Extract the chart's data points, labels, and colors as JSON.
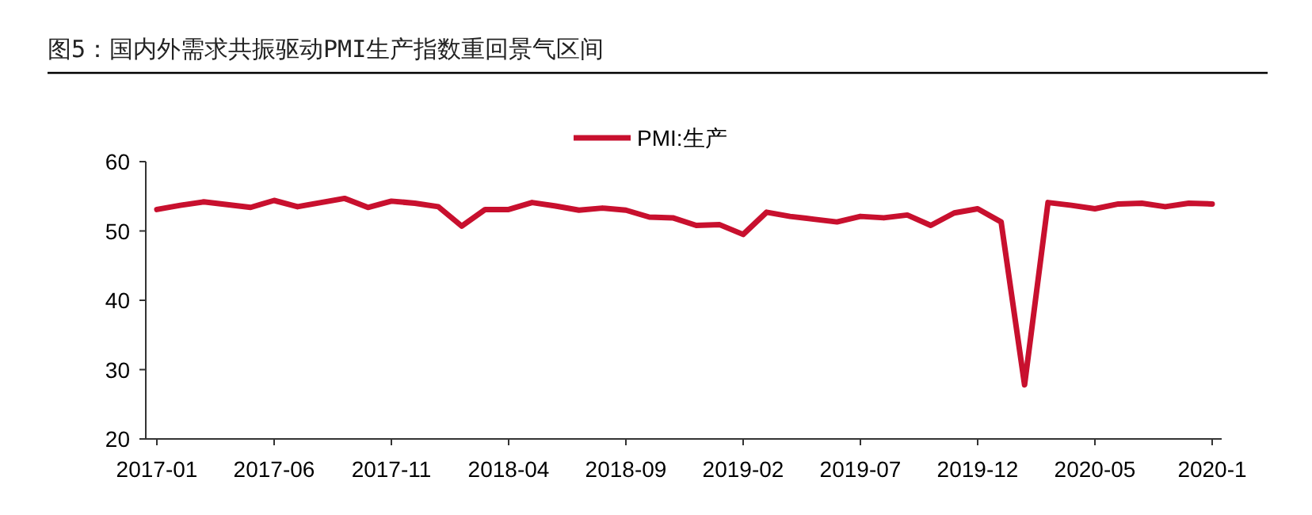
{
  "chart_data": {
    "type": "line",
    "title": "图5：国内外需求共振驱动PMI生产指数重回景气区间",
    "categories": [
      "2017-01",
      null,
      null,
      null,
      null,
      "2017-06",
      null,
      null,
      null,
      null,
      "2017-11",
      null,
      null,
      null,
      null,
      "2018-04",
      null,
      null,
      null,
      null,
      "2018-09",
      null,
      null,
      null,
      null,
      "2019-02",
      null,
      null,
      null,
      null,
      "2019-07",
      null,
      null,
      null,
      null,
      "2019-12",
      null,
      null,
      null,
      null,
      "2020-05",
      null,
      null,
      null,
      null,
      "2020-1"
    ],
    "series": [
      {
        "name": "PMI:生产",
        "color": "#c8102e",
        "values": [
          53.1,
          53.7,
          54.2,
          53.8,
          53.4,
          54.4,
          53.5,
          54.1,
          54.7,
          53.4,
          54.3,
          54.0,
          53.5,
          50.7,
          53.1,
          53.1,
          54.1,
          53.6,
          53.0,
          53.3,
          53.0,
          52.0,
          51.9,
          50.8,
          50.9,
          49.5,
          52.7,
          52.1,
          51.7,
          51.3,
          52.1,
          51.9,
          52.3,
          50.8,
          52.6,
          53.2,
          51.3,
          27.8,
          54.1,
          53.7,
          53.2,
          53.9,
          54.0,
          53.5,
          54.0,
          53.9
        ]
      }
    ],
    "ylim": [
      20,
      60
    ],
    "yticks": [
      20,
      30,
      40,
      50,
      60
    ],
    "legend": "top",
    "grid": false
  }
}
